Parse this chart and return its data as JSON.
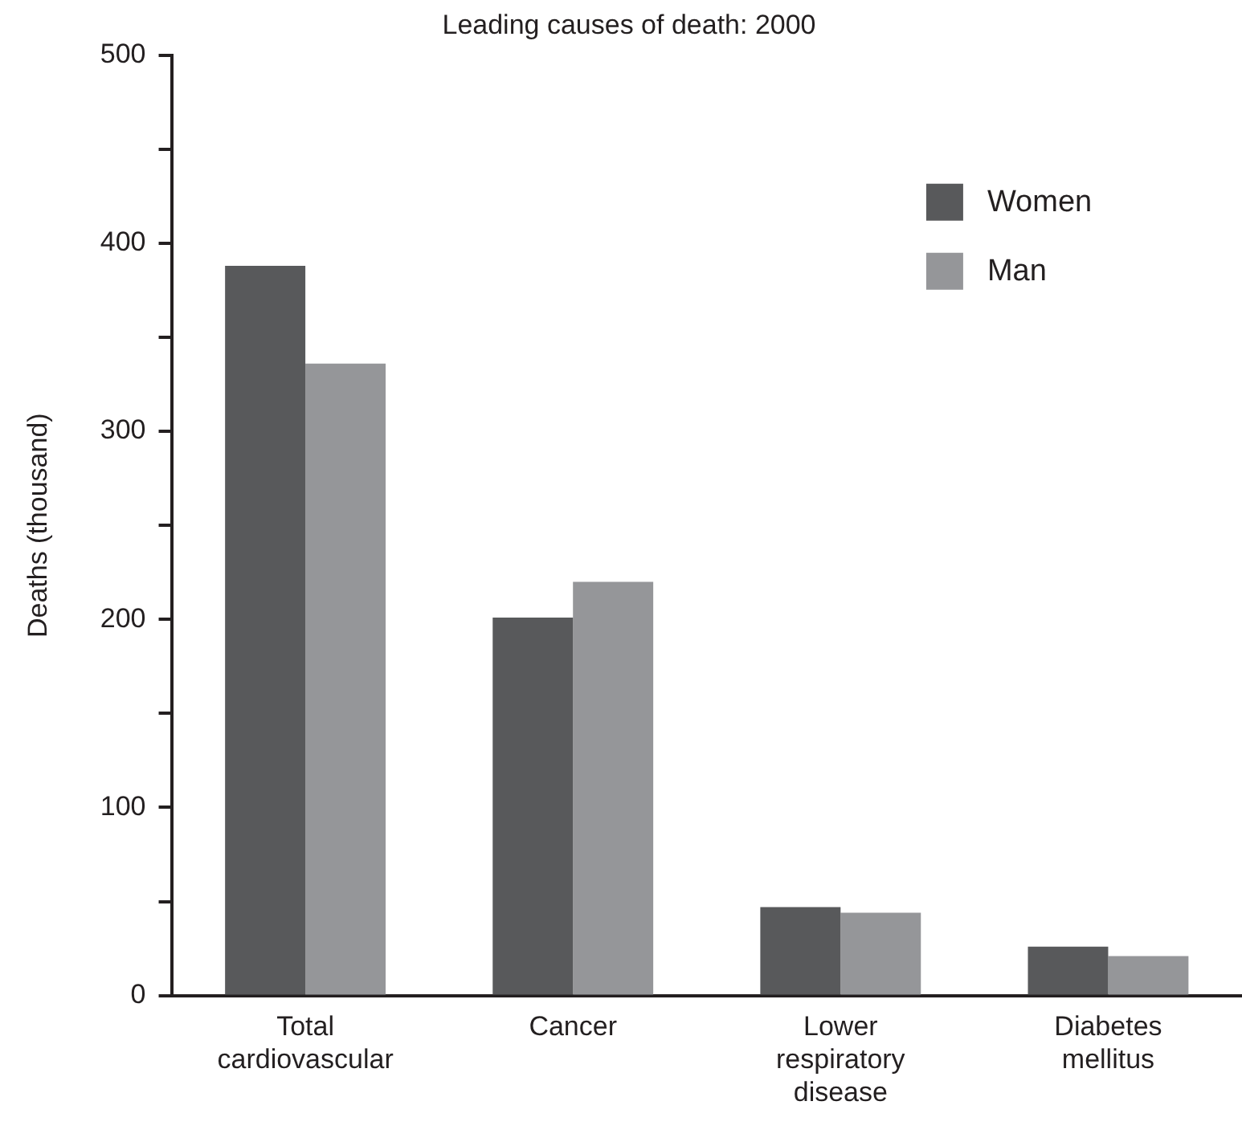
{
  "chart_data": {
    "type": "bar",
    "title": "Leading causes of death: 2000",
    "ylabel": "Deaths (thousand)",
    "categories": [
      "Total cardiovascular",
      "Cancer",
      "Lower respiratory disease",
      "Diabetes mellitus"
    ],
    "series": [
      {
        "name": "Women",
        "color": "#58595b",
        "values": [
          388,
          201,
          47,
          26
        ]
      },
      {
        "name": "Man",
        "color": "#959699",
        "values": [
          336,
          220,
          44,
          21
        ]
      }
    ],
    "ylim": [
      0,
      500
    ],
    "yticks": [
      0,
      {
        "value": 50,
        "label": null
      },
      100,
      {
        "value": 150,
        "label": null
      },
      200,
      {
        "value": 250,
        "label": null
      },
      300,
      {
        "value": 350,
        "label": null
      },
      400,
      {
        "value": 450,
        "label": null
      },
      500
    ],
    "grid": false,
    "legend": "top right"
  }
}
